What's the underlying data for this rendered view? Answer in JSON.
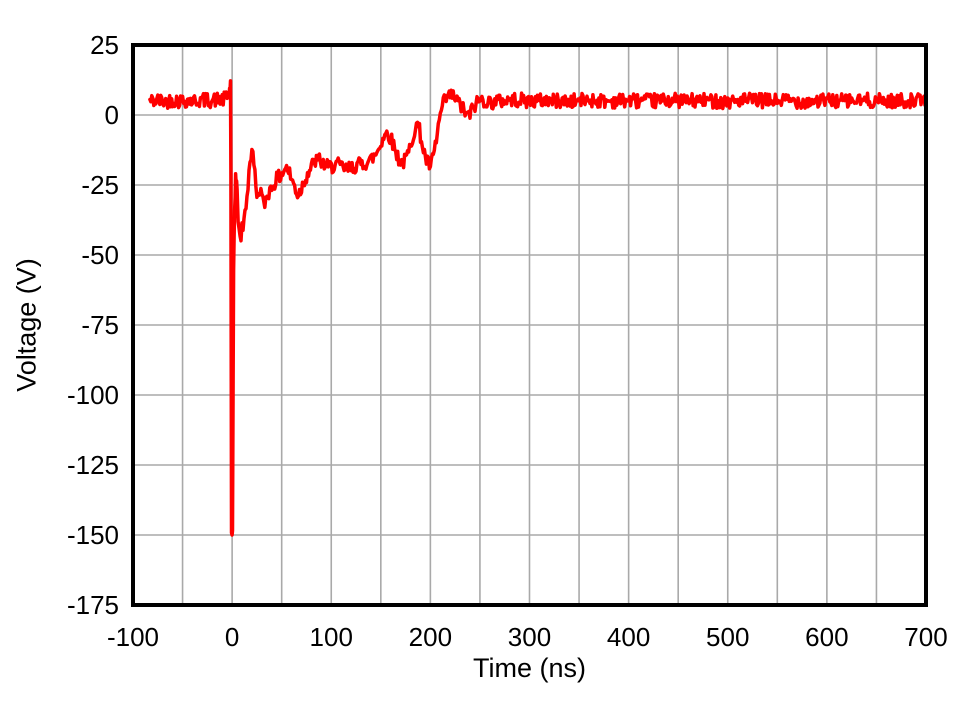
{
  "chart_data": {
    "type": "line",
    "title": "",
    "xlabel": "Time (ns)",
    "ylabel": "Voltage (V)",
    "xlim": [
      -100,
      700
    ],
    "ylim": [
      -175,
      25
    ],
    "xticks": [
      -100,
      0,
      100,
      200,
      300,
      400,
      500,
      600,
      700
    ],
    "yticks": [
      25,
      0,
      -25,
      -50,
      -75,
      -100,
      -125,
      -150,
      -175
    ],
    "x_grid_step": 50,
    "y_grid_step": 25,
    "grid": true,
    "grid_color": "#a9a9a9",
    "frame_color": "#000000",
    "background_color": "#ffffff",
    "line_color": "#ff0000",
    "line_width": 3.5,
    "noise_amplitude_v": 2.6,
    "noise_seed": 42,
    "sample_step_ns": 1,
    "series": [
      {
        "name": "voltage",
        "points": [
          [
            -83,
            5
          ],
          [
            -75,
            5.2
          ],
          [
            -68,
            4.8
          ],
          [
            -60,
            5.4
          ],
          [
            -52,
            5
          ],
          [
            -45,
            5.3
          ],
          [
            -38,
            5
          ],
          [
            -30,
            5.4
          ],
          [
            -22,
            5.2
          ],
          [
            -15,
            5.5
          ],
          [
            -8,
            5.6
          ],
          [
            -4,
            6.5
          ],
          [
            -2.5,
            9
          ],
          [
            -1.6,
            11
          ],
          [
            -1.2,
            -20
          ],
          [
            -0.6,
            -151
          ],
          [
            0.4,
            -151
          ],
          [
            1.5,
            -55
          ],
          [
            2.5,
            -33
          ],
          [
            3.5,
            -22
          ],
          [
            4.5,
            -25
          ],
          [
            6,
            -36
          ],
          [
            8,
            -45
          ],
          [
            10,
            -41
          ],
          [
            12,
            -38
          ],
          [
            14,
            -32
          ],
          [
            16,
            -25
          ],
          [
            18,
            -16
          ],
          [
            20,
            -13
          ],
          [
            22,
            -17
          ],
          [
            24,
            -25
          ],
          [
            26,
            -30
          ],
          [
            28,
            -26
          ],
          [
            30,
            -29
          ],
          [
            32,
            -33
          ],
          [
            34,
            -30
          ],
          [
            36,
            -28
          ],
          [
            39,
            -26.5
          ],
          [
            42,
            -24.5
          ],
          [
            45,
            -23
          ],
          [
            48,
            -22
          ],
          [
            51,
            -20.5
          ],
          [
            54,
            -18.5
          ],
          [
            57,
            -20
          ],
          [
            60,
            -23
          ],
          [
            63,
            -25.5
          ],
          [
            66,
            -28.5
          ],
          [
            69,
            -27
          ],
          [
            72,
            -24
          ],
          [
            76,
            -21
          ],
          [
            80,
            -18.5
          ],
          [
            84,
            -16.5
          ],
          [
            88,
            -16
          ],
          [
            92,
            -17.5
          ],
          [
            96,
            -18.5
          ],
          [
            100,
            -18.5
          ],
          [
            105,
            -17.5
          ],
          [
            110,
            -18.5
          ],
          [
            115,
            -19.5
          ],
          [
            120,
            -19
          ],
          [
            125,
            -18
          ],
          [
            130,
            -17.5
          ],
          [
            135,
            -17
          ],
          [
            140,
            -16
          ],
          [
            145,
            -14
          ],
          [
            149,
            -11
          ],
          [
            153,
            -7.5
          ],
          [
            156,
            -6.5
          ],
          [
            159,
            -7.5
          ],
          [
            162,
            -10
          ],
          [
            165,
            -13
          ],
          [
            168,
            -15.5
          ],
          [
            171,
            -17
          ],
          [
            174,
            -16.5
          ],
          [
            178,
            -13.5
          ],
          [
            182,
            -8
          ],
          [
            185,
            -4
          ],
          [
            187,
            -3.5
          ],
          [
            189,
            -5.5
          ],
          [
            191,
            -9
          ],
          [
            194,
            -14
          ],
          [
            197,
            -17
          ],
          [
            200,
            -18.5
          ],
          [
            203,
            -15
          ],
          [
            206,
            -9
          ],
          [
            209,
            -2
          ],
          [
            212,
            3
          ],
          [
            215,
            5.5
          ],
          [
            218,
            6.5
          ],
          [
            222,
            7
          ],
          [
            226,
            5.5
          ],
          [
            230,
            3.5
          ],
          [
            234,
            1.5
          ],
          [
            237,
            -0.5
          ],
          [
            240,
            0.5
          ],
          [
            244,
            3
          ],
          [
            248,
            5
          ],
          [
            252,
            5.5
          ],
          [
            260,
            4.5
          ],
          [
            270,
            5
          ],
          [
            285,
            5.5
          ],
          [
            300,
            5
          ],
          [
            320,
            5.3
          ],
          [
            340,
            4.8
          ],
          [
            360,
            5.4
          ],
          [
            380,
            5
          ],
          [
            400,
            5.3
          ],
          [
            420,
            4.9
          ],
          [
            440,
            5.4
          ],
          [
            460,
            5
          ],
          [
            480,
            5.2
          ],
          [
            500,
            4.8
          ],
          [
            520,
            5.3
          ],
          [
            540,
            5
          ],
          [
            560,
            5.2
          ],
          [
            580,
            4.8
          ],
          [
            600,
            5.2
          ],
          [
            620,
            5
          ],
          [
            640,
            5.2
          ],
          [
            660,
            4.9
          ],
          [
            680,
            5.2
          ],
          [
            699,
            5
          ]
        ]
      }
    ]
  }
}
